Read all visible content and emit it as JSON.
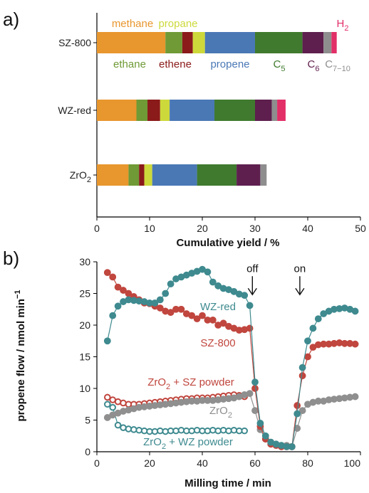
{
  "panel_labels": [
    "a)",
    "b)"
  ],
  "chart_data": [
    {
      "type": "bar",
      "stacked": true,
      "orientation": "horizontal",
      "categories": [
        "SZ-800",
        "WZ-red",
        "ZrO2"
      ],
      "category_labels": [
        {
          "base": "SZ-800",
          "sub": ""
        },
        {
          "base": "WZ-red",
          "sub": ""
        },
        {
          "base": "ZrO",
          "sub": "2"
        }
      ],
      "series": [
        {
          "name": "methane",
          "label": "methane",
          "sub": "",
          "color": "#E8962E",
          "values": [
            13.0,
            7.5,
            6.0
          ]
        },
        {
          "name": "ethane",
          "label": "ethane",
          "sub": "",
          "color": "#6F9A35",
          "values": [
            3.2,
            2.1,
            2.0
          ]
        },
        {
          "name": "ethene",
          "label": "ethene",
          "sub": "",
          "color": "#8B1A1A",
          "values": [
            2.0,
            2.4,
            1.0
          ]
        },
        {
          "name": "propane",
          "label": "propane",
          "sub": "",
          "color": "#CDD93A",
          "values": [
            2.3,
            1.8,
            1.5
          ]
        },
        {
          "name": "propene",
          "label": "propene",
          "sub": "",
          "color": "#4A78B5",
          "values": [
            9.5,
            8.5,
            8.5
          ]
        },
        {
          "name": "C5",
          "label": "C",
          "sub": "5",
          "color": "#3F7A2E",
          "values": [
            9.0,
            7.7,
            7.5
          ]
        },
        {
          "name": "C6",
          "label": "C",
          "sub": "6",
          "color": "#5E1F4E",
          "values": [
            4.0,
            3.2,
            4.5
          ]
        },
        {
          "name": "C7-10",
          "label": "C",
          "sub": "7−10",
          "color": "#8E8E8E",
          "values": [
            1.5,
            1.0,
            1.2
          ]
        },
        {
          "name": "H2",
          "label": "H",
          "sub": "2",
          "color": "#E22F68",
          "values": [
            1.0,
            1.6,
            0.0
          ]
        }
      ],
      "xlabel": "Cumulative yield / %",
      "xlim": [
        0,
        50
      ],
      "xticks": [
        0,
        10,
        20,
        30,
        40,
        50
      ]
    },
    {
      "type": "scatter",
      "xlabel": "Milling time / min",
      "ylabel": "propene flow / nmol min",
      "ylabel_sup": "−1",
      "xlim": [
        0,
        100
      ],
      "ylim": [
        0,
        30
      ],
      "xticks": [
        0,
        20,
        40,
        60,
        80,
        100
      ],
      "xtick_labels": [
        "0",
        "20",
        "40",
        "60",
        "80",
        "100"
      ],
      "yticks": [
        0,
        5,
        10,
        15,
        20,
        25,
        30
      ],
      "annotations": [
        {
          "text": "off",
          "x": 59,
          "y": 27.5
        },
        {
          "text": "on",
          "x": 77,
          "y": 27.5
        }
      ],
      "series": [
        {
          "name": "WZ-red",
          "label": "WZ-red",
          "sub": "",
          "after": "",
          "color": "#3E8A8F",
          "filled": true,
          "x": [
            4,
            6,
            8,
            10,
            12,
            14,
            16,
            18,
            20,
            22,
            24,
            26,
            28,
            30,
            32,
            34,
            36,
            38,
            40,
            42,
            44,
            46,
            48,
            50,
            52,
            54,
            56,
            58,
            60,
            62,
            64,
            66,
            68,
            70,
            72,
            74,
            76,
            78,
            80,
            82,
            84,
            86,
            88,
            90,
            92,
            94,
            96,
            98
          ],
          "y": [
            17.5,
            21.5,
            23.0,
            23.7,
            24.0,
            23.9,
            23.8,
            23.7,
            23.5,
            23.5,
            24.0,
            25.0,
            26.5,
            27.3,
            27.6,
            27.9,
            28.2,
            28.5,
            28.8,
            28.4,
            26.8,
            26.2,
            25.8,
            25.6,
            25.3,
            24.9,
            24.7,
            23.1,
            11.0,
            4.5,
            2.5,
            1.5,
            1.2,
            1.0,
            0.8,
            0.8,
            6.0,
            13.3,
            17.5,
            19.5,
            21.0,
            21.8,
            22.2,
            22.5,
            22.6,
            22.7,
            22.5,
            22.2
          ]
        },
        {
          "name": "SZ-800",
          "label": "SZ-800",
          "sub": "",
          "after": "",
          "color": "#C0463E",
          "filled": true,
          "x": [
            4,
            6,
            8,
            10,
            12,
            14,
            16,
            18,
            20,
            22,
            24,
            26,
            28,
            30,
            32,
            34,
            36,
            38,
            40,
            42,
            44,
            46,
            48,
            50,
            52,
            54,
            56,
            58,
            60,
            62,
            64,
            66,
            68,
            70,
            72,
            74,
            76,
            78,
            80,
            82,
            84,
            86,
            88,
            90,
            92,
            94,
            96,
            98
          ],
          "y": [
            28.3,
            27.6,
            26.0,
            25.5,
            25.0,
            24.5,
            24.0,
            23.5,
            23.4,
            23.0,
            22.7,
            22.2,
            22.0,
            22.5,
            22.5,
            21.8,
            21.5,
            21.0,
            21.5,
            20.8,
            20.8,
            20.0,
            20.3,
            19.8,
            19.5,
            19.2,
            19.3,
            19.5,
            10.0,
            4.0,
            2.0,
            1.2,
            1.0,
            0.8,
            0.8,
            0.8,
            7.3,
            12.0,
            15.0,
            16.5,
            16.9,
            17.0,
            17.0,
            17.1,
            17.2,
            17.1,
            17.1,
            17.0
          ]
        },
        {
          "name": "ZrO2 + SZ powder",
          "label": "ZrO",
          "sub": "2",
          "after": " + SZ powder",
          "color": "#C0463E",
          "filled": false,
          "x": [
            4,
            6,
            8,
            10,
            12,
            14,
            16,
            18,
            20,
            22,
            24,
            26,
            28,
            30,
            32,
            34,
            36,
            38,
            40,
            42,
            44,
            46,
            48,
            50,
            52,
            54,
            56
          ],
          "y": [
            8.6,
            8.2,
            7.9,
            7.7,
            7.5,
            7.5,
            7.5,
            7.6,
            7.7,
            7.8,
            7.9,
            8.0,
            8.1,
            8.2,
            8.3,
            8.4,
            8.4,
            8.5,
            8.5,
            8.5,
            8.6,
            8.7,
            8.8,
            8.9,
            9.0,
            8.9,
            8.7
          ]
        },
        {
          "name": "ZrO2",
          "label": "ZrO",
          "sub": "2",
          "after": "",
          "color": "#8F8F8F",
          "filled": true,
          "x": [
            4,
            6,
            8,
            10,
            12,
            14,
            16,
            18,
            20,
            22,
            24,
            26,
            28,
            30,
            32,
            34,
            36,
            38,
            40,
            42,
            44,
            46,
            48,
            50,
            52,
            54,
            56,
            58,
            60,
            62,
            64,
            66,
            68,
            70,
            72,
            74,
            76,
            78,
            80,
            82,
            84,
            86,
            88,
            90,
            92,
            94,
            96,
            98
          ],
          "y": [
            5.4,
            5.8,
            6.1,
            6.4,
            6.6,
            6.8,
            7.0,
            7.1,
            7.2,
            7.3,
            7.4,
            7.5,
            7.6,
            7.7,
            7.8,
            7.9,
            8.0,
            8.0,
            8.1,
            8.1,
            8.1,
            8.2,
            8.3,
            8.4,
            8.5,
            8.7,
            9.0,
            9.2,
            6.5,
            3.5,
            2.0,
            1.5,
            1.2,
            1.0,
            1.0,
            0.8,
            3.7,
            6.5,
            7.5,
            7.8,
            8.0,
            8.0,
            8.2,
            8.3,
            8.4,
            8.5,
            8.6,
            8.7
          ]
        },
        {
          "name": "ZrO2 + WZ powder",
          "label": "ZrO",
          "sub": "2",
          "after": " + WZ powder",
          "color": "#3E8A8F",
          "filled": false,
          "x": [
            4,
            6,
            8,
            10,
            12,
            14,
            16,
            18,
            20,
            22,
            24,
            26,
            28,
            30,
            32,
            34,
            36,
            38,
            40,
            42,
            44,
            46,
            48,
            50,
            52,
            54,
            56
          ],
          "y": [
            7.5,
            7.0,
            4.2,
            3.8,
            3.6,
            3.5,
            3.4,
            3.3,
            3.2,
            3.2,
            3.3,
            3.2,
            3.3,
            3.3,
            3.4,
            3.3,
            3.3,
            3.4,
            3.3,
            3.3,
            3.4,
            3.3,
            3.4,
            3.3,
            3.4,
            3.3,
            3.3
          ]
        }
      ]
    }
  ]
}
